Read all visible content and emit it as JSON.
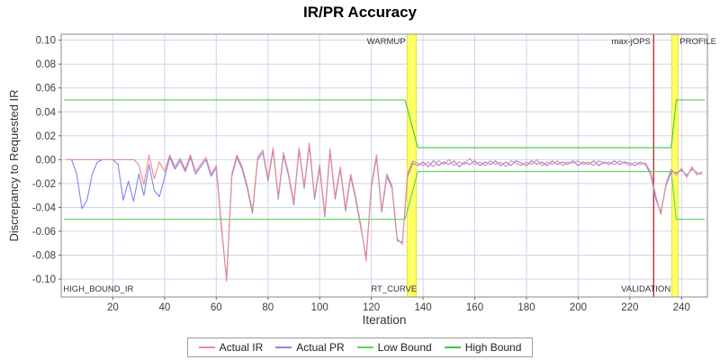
{
  "chart_data": {
    "type": "line",
    "title": "IR/PR Accuracy",
    "xlabel": "Iteration",
    "ylabel": "Discrepancy to Requested IR",
    "xlim": [
      0,
      250
    ],
    "ylim": [
      -0.115,
      0.105
    ],
    "x_ticks": [
      20,
      40,
      60,
      80,
      100,
      120,
      140,
      160,
      180,
      200,
      220,
      240
    ],
    "y_ticks": [
      -0.1,
      -0.08,
      -0.06,
      -0.04,
      -0.02,
      0.0,
      0.02,
      0.04,
      0.06,
      0.08,
      0.1
    ],
    "grid": true,
    "legend_position": "bottom",
    "colors": {
      "grid": "#ccd5ec",
      "plot_border": "#8a8a8a",
      "tick": "#666666",
      "tick_label": "#3c3c3c",
      "annotation": "#333333",
      "band_fill": "#ffff66",
      "band_edge": "#e3e332",
      "validation_line": "#bb3333"
    },
    "series": [
      {
        "name": "Actual IR",
        "color": "#ef8a8a",
        "x_start": 2,
        "x_step": 2,
        "values": [
          0,
          0,
          0,
          0,
          0,
          0,
          0,
          0,
          0,
          0,
          0,
          0,
          0,
          0,
          -0.004,
          -0.021,
          0.004,
          -0.016,
          -0.002,
          -0.01,
          0.004,
          -0.006,
          0.001,
          -0.008,
          0.004,
          -0.01,
          -0.004,
          0.002,
          -0.012,
          -0.005,
          -0.055,
          -0.102,
          -0.012,
          0.004,
          -0.006,
          -0.022,
          -0.043,
          0.002,
          0.008,
          -0.016,
          0.01,
          -0.031,
          0.006,
          -0.012,
          -0.036,
          0.01,
          -0.022,
          0.014,
          -0.031,
          -0.004,
          -0.046,
          0.009,
          -0.031,
          -0.006,
          -0.041,
          -0.012,
          -0.032,
          -0.056,
          -0.085,
          -0.021,
          0.004,
          -0.042,
          -0.012,
          -0.022,
          -0.066,
          -0.071,
          -0.012,
          -0.001,
          -0.003,
          -0.005,
          -0.002,
          -0.006,
          -0.001,
          -0.004,
          0.0,
          -0.005,
          -0.002,
          -0.004,
          0.001,
          -0.004,
          -0.002,
          -0.005,
          -0.001,
          -0.004,
          -0.002,
          -0.006,
          -0.001,
          -0.003,
          -0.005,
          -0.002,
          -0.004,
          0.0,
          -0.005,
          -0.002,
          -0.004,
          -0.001,
          -0.005,
          -0.002,
          -0.003,
          -0.001,
          -0.004,
          -0.002,
          -0.005,
          -0.001,
          -0.003,
          -0.002,
          -0.004,
          -0.001,
          -0.003,
          -0.005,
          -0.002,
          -0.004,
          -0.003,
          -0.01,
          -0.03,
          -0.046,
          -0.02,
          -0.008,
          -0.013,
          -0.007,
          -0.015,
          -0.006,
          -0.013,
          -0.01
        ]
      },
      {
        "name": "Actual PR",
        "color": "#8585e8",
        "x_start": 2,
        "x_step": 2,
        "values": [
          0,
          0,
          -0.012,
          -0.041,
          -0.034,
          -0.012,
          -0.002,
          0,
          0,
          0,
          -0.004,
          -0.034,
          -0.018,
          -0.035,
          -0.012,
          -0.03,
          -0.004,
          -0.026,
          -0.031,
          -0.015,
          0.002,
          -0.008,
          -0.001,
          -0.01,
          0.002,
          -0.012,
          -0.006,
          0.0,
          -0.014,
          -0.007,
          -0.058,
          -0.1,
          -0.014,
          0.002,
          -0.008,
          -0.024,
          -0.045,
          0.0,
          0.006,
          -0.018,
          0.008,
          -0.033,
          0.004,
          -0.014,
          -0.038,
          0.008,
          -0.024,
          0.012,
          -0.033,
          -0.006,
          -0.048,
          0.007,
          -0.033,
          -0.008,
          -0.043,
          -0.014,
          -0.034,
          -0.058,
          -0.082,
          -0.023,
          0.002,
          -0.044,
          -0.014,
          -0.024,
          -0.068,
          -0.069,
          -0.014,
          -0.003,
          -0.005,
          -0.002,
          -0.006,
          -0.001,
          -0.005,
          -0.002,
          -0.004,
          -0.001,
          -0.006,
          -0.002,
          -0.004,
          -0.001,
          -0.005,
          -0.002,
          -0.004,
          -0.001,
          -0.005,
          -0.002,
          -0.005,
          -0.001,
          -0.003,
          -0.005,
          -0.001,
          -0.004,
          -0.002,
          -0.005,
          -0.001,
          -0.004,
          -0.002,
          -0.004,
          -0.001,
          -0.005,
          -0.002,
          -0.004,
          -0.001,
          -0.005,
          -0.002,
          -0.004,
          -0.001,
          -0.004,
          -0.002,
          -0.003,
          -0.005,
          -0.002,
          -0.004,
          -0.012,
          -0.033,
          -0.044,
          -0.022,
          -0.01,
          -0.011,
          -0.009,
          -0.013,
          -0.008,
          -0.011,
          -0.012
        ]
      },
      {
        "name": "Low Bound",
        "color": "#5ad45a",
        "points": [
          [
            1,
            -0.05
          ],
          [
            133,
            -0.05
          ],
          [
            138,
            -0.01
          ],
          [
            236,
            -0.01
          ],
          [
            238,
            -0.05
          ],
          [
            249,
            -0.05
          ]
        ]
      },
      {
        "name": "High Bound",
        "color": "#3cc83c",
        "points": [
          [
            1,
            0.05
          ],
          [
            133,
            0.05
          ],
          [
            138,
            0.01
          ],
          [
            236,
            0.01
          ],
          [
            238,
            0.05
          ],
          [
            249,
            0.05
          ]
        ]
      }
    ],
    "markers": {
      "bands": [
        {
          "id": "warmup-rt-curve",
          "x0": 133.8,
          "x1": 137.3
        },
        {
          "id": "profile",
          "x0": 236.2,
          "x1": 238.6
        }
      ],
      "lines": [
        {
          "id": "validation",
          "x": 229.2,
          "width": 1.4
        }
      ]
    },
    "annotations": [
      {
        "text": "WARMUP",
        "x": 133.2,
        "pos": "top",
        "anchor": "end"
      },
      {
        "text": "max-jOPS",
        "x": 228.0,
        "pos": "top",
        "anchor": "end"
      },
      {
        "text": "PROFILE",
        "x": 239.3,
        "pos": "top",
        "anchor": "start"
      },
      {
        "text": "HIGH_BOUND_IR",
        "x": 0.8,
        "pos": "bottom",
        "anchor": "start"
      },
      {
        "text": "RT_CURVE",
        "x": 137.6,
        "pos": "bottom",
        "anchor": "end"
      },
      {
        "text": "VALIDATION",
        "x": 235.8,
        "pos": "bottom",
        "anchor": "end"
      }
    ]
  }
}
